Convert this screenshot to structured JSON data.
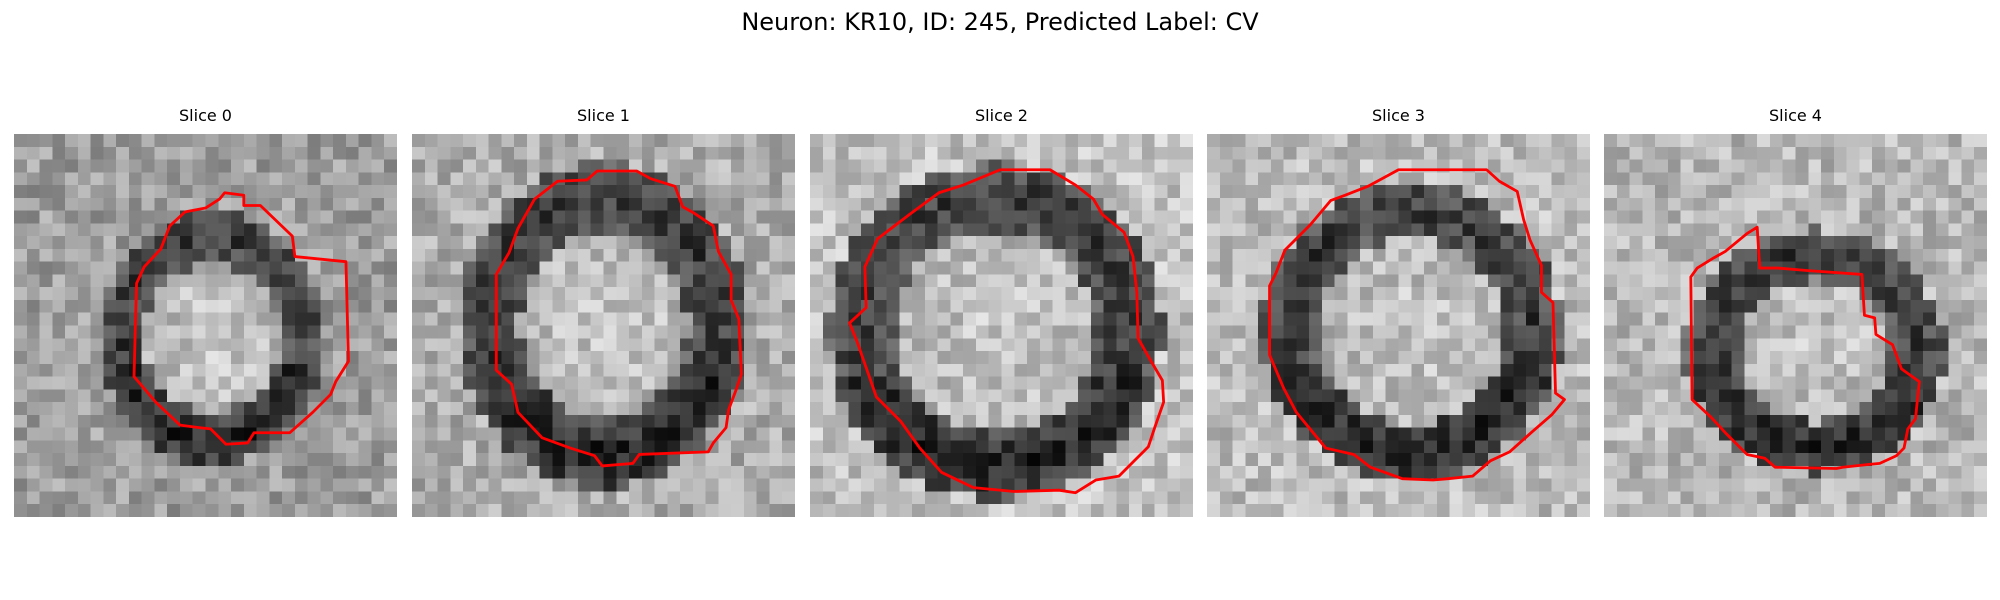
{
  "figure": {
    "title": "Neuron: KR10, ID: 245, Predicted Label: CV"
  },
  "colors": {
    "contour": "#ff0000",
    "background": "#ffffff"
  },
  "slices": [
    {
      "title": "Slice 0"
    },
    {
      "title": "Slice 1"
    },
    {
      "title": "Slice 2"
    },
    {
      "title": "Slice 3"
    },
    {
      "title": "Slice 4"
    }
  ]
}
